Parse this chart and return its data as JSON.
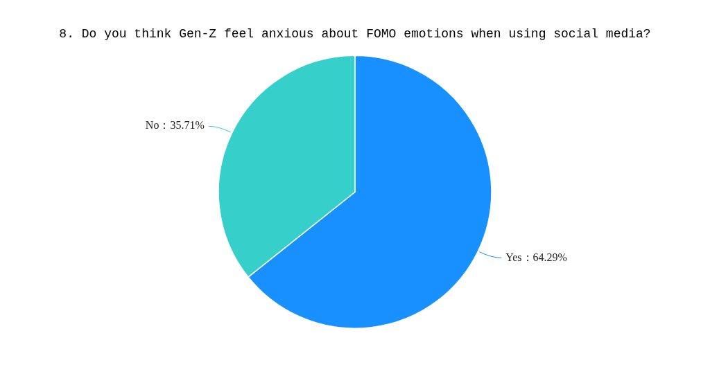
{
  "chart_data": {
    "type": "pie",
    "title": "8. Do you think Gen-Z feel anxious about FOMO emotions when using social media?",
    "categories": [
      "Yes",
      "No"
    ],
    "values": [
      64.29,
      35.71
    ],
    "colors": [
      "#1890ff",
      "#36cfc9"
    ],
    "value_labels": [
      "：64.29%",
      "：35.71%"
    ],
    "legend": false
  }
}
